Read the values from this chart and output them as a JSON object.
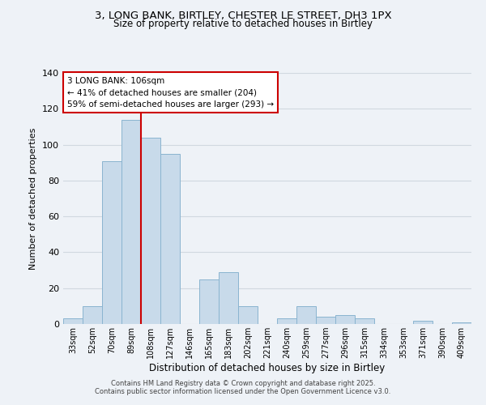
{
  "title_line1": "3, LONG BANK, BIRTLEY, CHESTER LE STREET, DH3 1PX",
  "title_line2": "Size of property relative to detached houses in Birtley",
  "xlabel": "Distribution of detached houses by size in Birtley",
  "ylabel": "Number of detached properties",
  "bar_labels": [
    "33sqm",
    "52sqm",
    "70sqm",
    "89sqm",
    "108sqm",
    "127sqm",
    "146sqm",
    "165sqm",
    "183sqm",
    "202sqm",
    "221sqm",
    "240sqm",
    "259sqm",
    "277sqm",
    "296sqm",
    "315sqm",
    "334sqm",
    "353sqm",
    "371sqm",
    "390sqm",
    "409sqm"
  ],
  "bar_values": [
    3,
    10,
    91,
    114,
    104,
    95,
    0,
    25,
    29,
    10,
    0,
    3,
    10,
    4,
    5,
    3,
    0,
    0,
    2,
    0,
    1
  ],
  "bar_color": "#c8daea",
  "bar_edge_color": "#8ab4d0",
  "grid_color": "#d0d8e0",
  "bg_color": "#eef2f7",
  "vline_x_index": 4,
  "vline_color": "#cc0000",
  "annotation_title": "3 LONG BANK: 106sqm",
  "annotation_line1": "← 41% of detached houses are smaller (204)",
  "annotation_line2": "59% of semi-detached houses are larger (293) →",
  "annotation_box_color": "white",
  "annotation_box_edge": "#cc0000",
  "ylim": [
    0,
    140
  ],
  "yticks": [
    0,
    20,
    40,
    60,
    80,
    100,
    120,
    140
  ],
  "footer_line1": "Contains HM Land Registry data © Crown copyright and database right 2025.",
  "footer_line2": "Contains public sector information licensed under the Open Government Licence v3.0."
}
